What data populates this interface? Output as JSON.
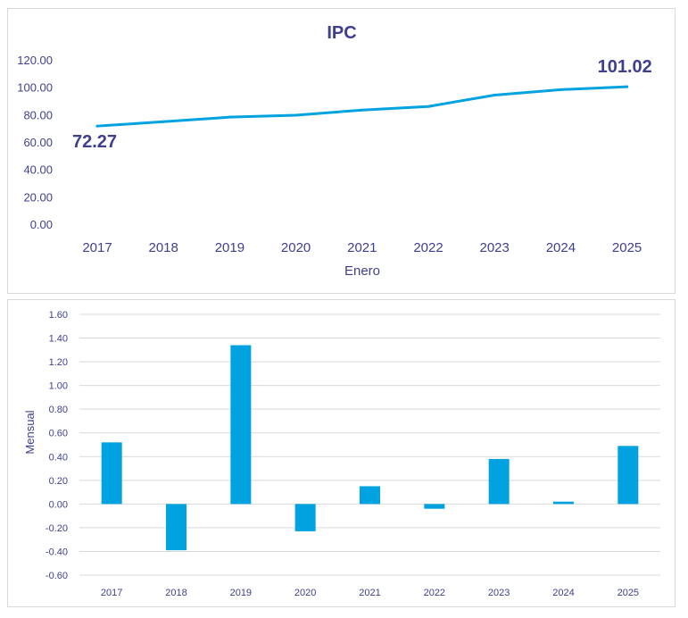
{
  "chart_data": [
    {
      "type": "line",
      "title": "IPC",
      "xlabel": "Enero",
      "ylabel": "",
      "ylim": [
        0,
        120
      ],
      "yticks": [
        "0.00",
        "20.00",
        "40.00",
        "60.00",
        "80.00",
        "100.00",
        "120.00"
      ],
      "grid": false,
      "color": "#00A3E0",
      "categories": [
        "2017",
        "2018",
        "2019",
        "2020",
        "2021",
        "2022",
        "2023",
        "2024",
        "2025"
      ],
      "values": [
        72.27,
        75.5,
        78.8,
        80.2,
        84.0,
        86.6,
        94.9,
        98.9,
        101.02
      ],
      "annotations": [
        {
          "index": 0,
          "text": "72.27"
        },
        {
          "index": 8,
          "text": "101.02"
        }
      ]
    },
    {
      "type": "bar",
      "title": "",
      "xlabel": "",
      "ylabel": "Mensual",
      "ylim": [
        -0.6,
        1.6
      ],
      "yticks": [
        "-0.60",
        "-0.40",
        "-0.20",
        "0.00",
        "0.20",
        "0.40",
        "0.60",
        "0.80",
        "1.00",
        "1.20",
        "1.40",
        "1.60"
      ],
      "grid": true,
      "color": "#00A3E0",
      "categories": [
        "2017",
        "2018",
        "2019",
        "2020",
        "2021",
        "2022",
        "2023",
        "2024",
        "2025"
      ],
      "values": [
        0.52,
        -0.39,
        1.34,
        -0.23,
        0.15,
        -0.04,
        0.38,
        0.02,
        0.49
      ]
    }
  ]
}
